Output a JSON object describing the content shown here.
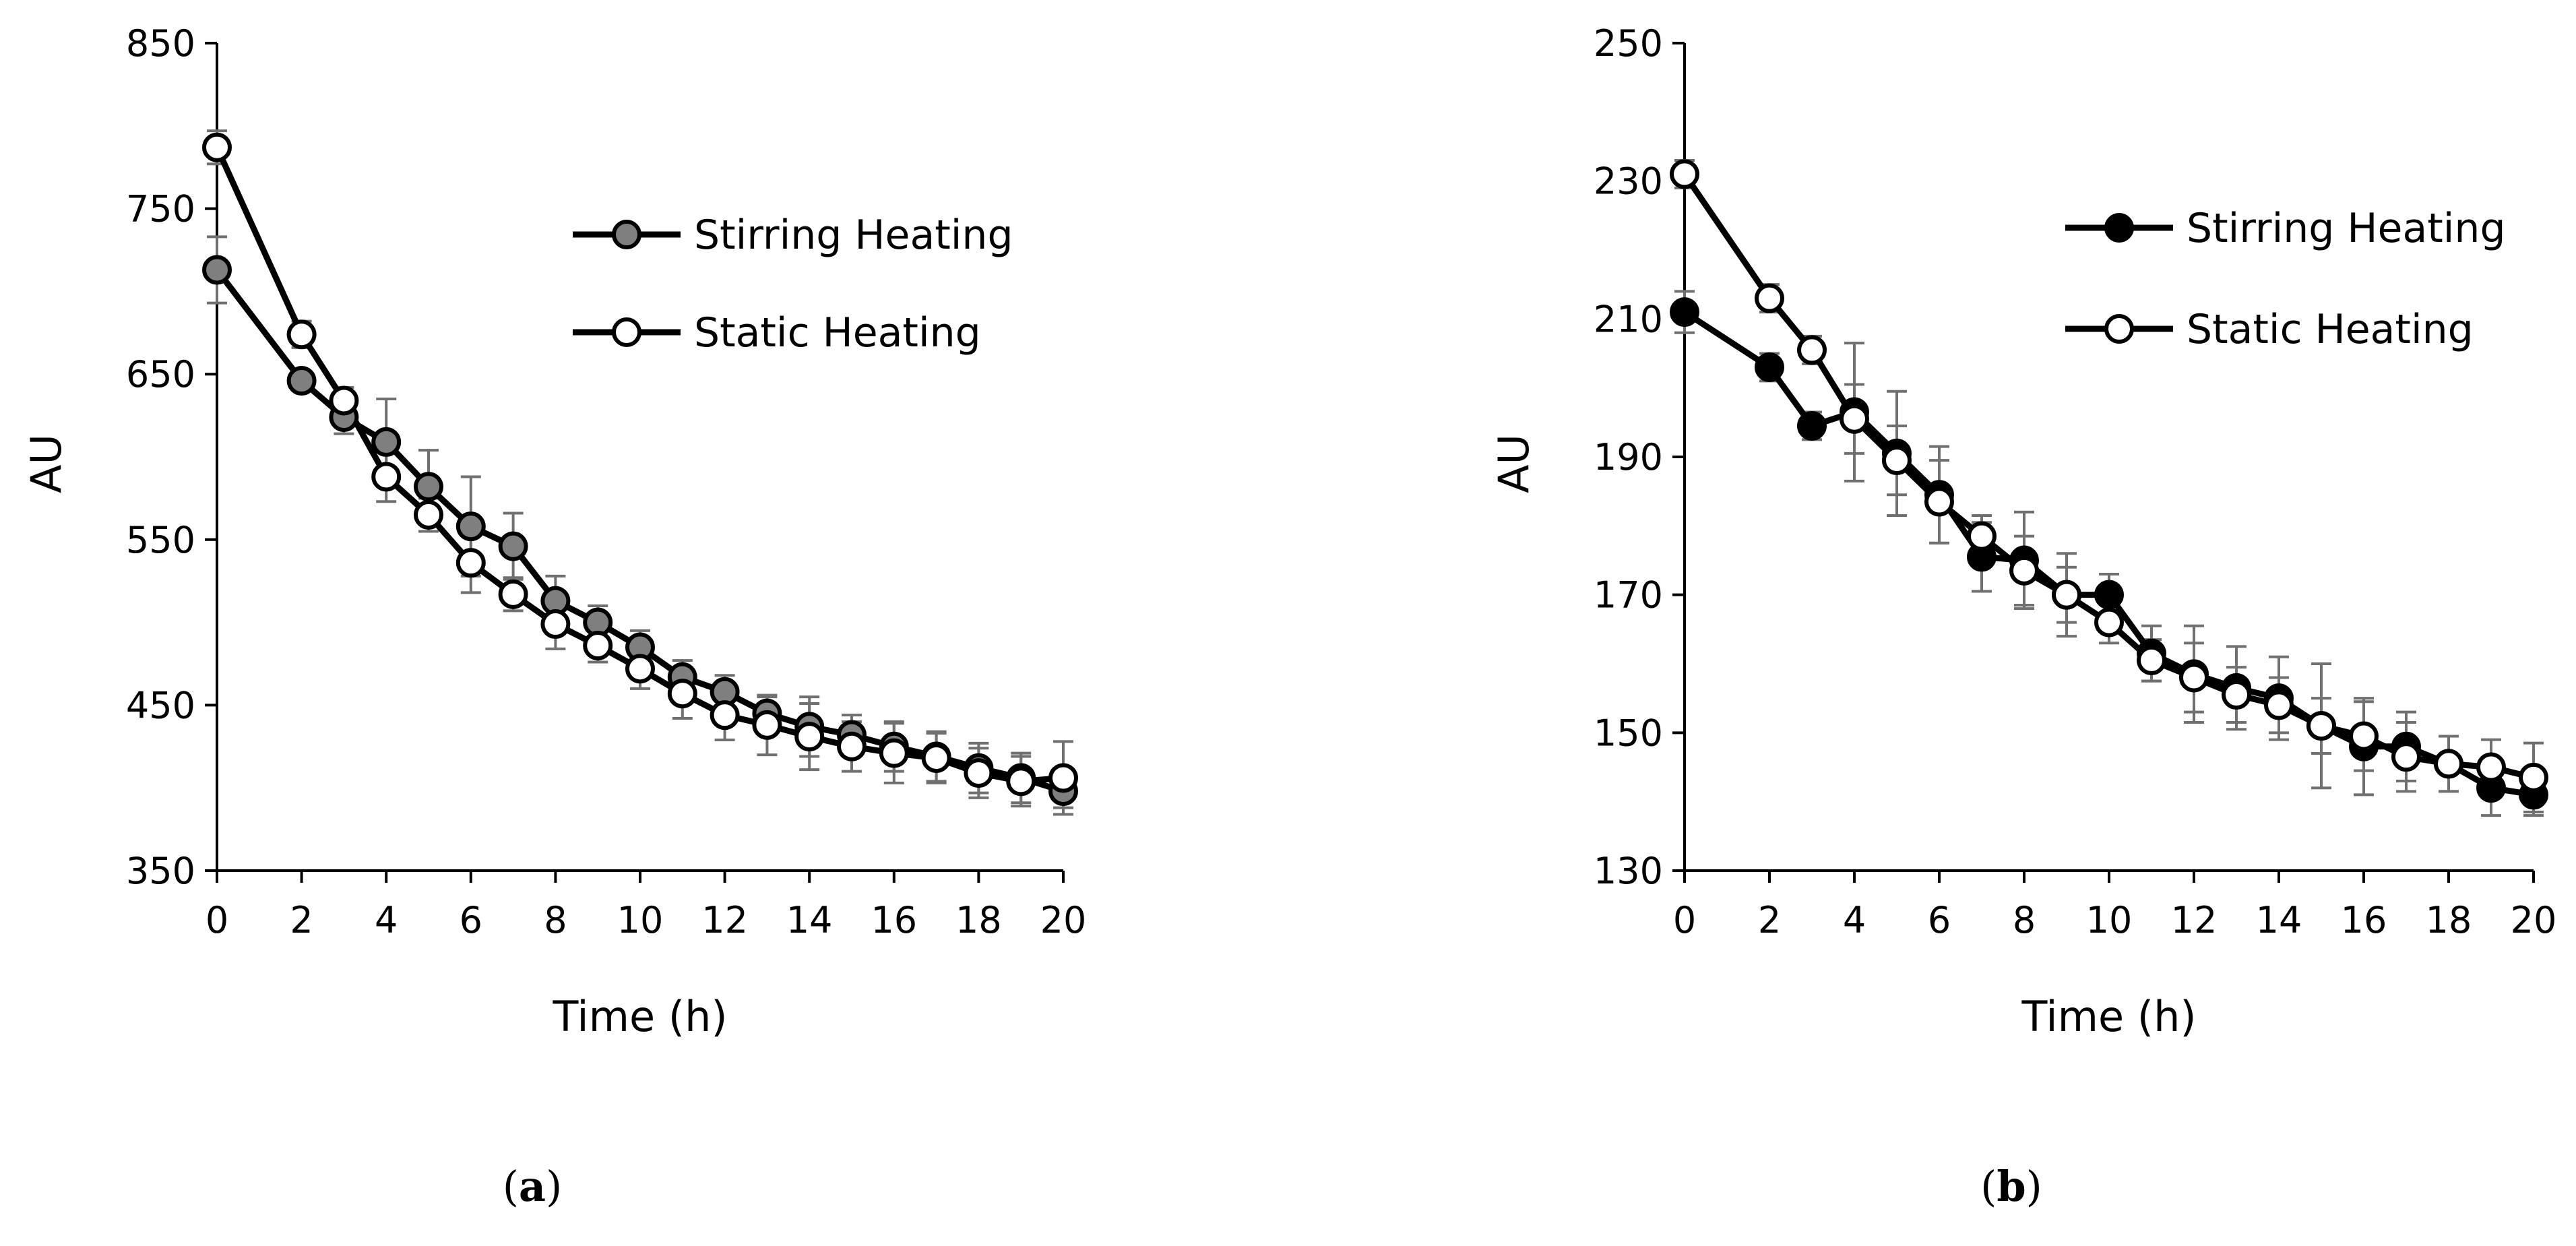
{
  "chart_data": [
    {
      "type": "line",
      "panel_label": {
        "open": "(",
        "letter": "a",
        "close": ")"
      },
      "xlabel": "Time (h)",
      "ylabel": "AU",
      "xlim": [
        0,
        20
      ],
      "ylim": [
        350,
        850
      ],
      "xticks": [
        0,
        2,
        4,
        6,
        8,
        10,
        12,
        14,
        16,
        18,
        20
      ],
      "yticks": [
        350,
        450,
        550,
        650,
        750,
        850
      ],
      "x": [
        0,
        2,
        3,
        4,
        5,
        6,
        7,
        8,
        9,
        10,
        11,
        12,
        13,
        14,
        15,
        16,
        17,
        18,
        19,
        20
      ],
      "legend_position": "top-right",
      "series": [
        {
          "name": "Stirring Heating",
          "marker_fill": "#7f7f7f",
          "values": [
            713,
            646,
            624,
            609,
            582,
            558,
            546,
            513,
            500,
            485,
            467,
            458,
            445,
            437,
            432,
            425,
            419,
            412,
            406,
            398
          ],
          "errors": [
            20,
            5,
            10,
            26,
            22,
            30,
            20,
            15,
            10,
            10,
            10,
            10,
            10,
            18,
            12,
            15,
            15,
            15,
            15,
            10
          ]
        },
        {
          "name": "Static Heating",
          "marker_fill": "#ffffff",
          "values": [
            787,
            674,
            634,
            588,
            565,
            536,
            517,
            499,
            486,
            472,
            457,
            444,
            438,
            431,
            425,
            421,
            418,
            409,
            404,
            406
          ],
          "errors": [
            10,
            8,
            8,
            15,
            10,
            18,
            10,
            15,
            10,
            12,
            15,
            15,
            18,
            20,
            15,
            18,
            15,
            15,
            15,
            22
          ]
        }
      ]
    },
    {
      "type": "line",
      "panel_label": {
        "open": "(",
        "letter": "b",
        "close": ")"
      },
      "xlabel": "Time (h)",
      "ylabel": "AU",
      "xlim": [
        0,
        20
      ],
      "ylim": [
        130,
        250
      ],
      "xticks": [
        0,
        2,
        4,
        6,
        8,
        10,
        12,
        14,
        16,
        18,
        20
      ],
      "yticks": [
        130,
        150,
        170,
        190,
        210,
        230,
        250
      ],
      "x": [
        0,
        2,
        3,
        4,
        5,
        6,
        7,
        8,
        9,
        10,
        11,
        12,
        13,
        14,
        15,
        16,
        17,
        18,
        19,
        20
      ],
      "legend_position": "top-right",
      "series": [
        {
          "name": "Stirring Heating",
          "marker_fill": "#000000",
          "values": [
            211,
            203,
            194.5,
            196.5,
            190.5,
            184.5,
            175.5,
            175,
            170,
            170,
            161.5,
            158.5,
            156.5,
            155,
            151,
            148,
            148,
            145.5,
            142,
            141
          ],
          "errors": [
            3,
            2,
            2,
            10,
            9,
            7,
            5,
            7,
            6,
            3,
            4,
            7,
            6,
            6,
            9,
            7,
            5,
            4,
            4,
            3
          ]
        },
        {
          "name": "Static Heating",
          "marker_fill": "#ffffff",
          "values": [
            231,
            213,
            205.5,
            195.5,
            189.5,
            183.5,
            178.5,
            173.5,
            170,
            166,
            160.5,
            158,
            155.5,
            154,
            151,
            149.5,
            146.5,
            145.5,
            145,
            143.5
          ],
          "errors": [
            2,
            2,
            2,
            5,
            5,
            6,
            3,
            5,
            4,
            3,
            3,
            5,
            4,
            4,
            4,
            5,
            5,
            4,
            4,
            5
          ]
        }
      ]
    }
  ]
}
